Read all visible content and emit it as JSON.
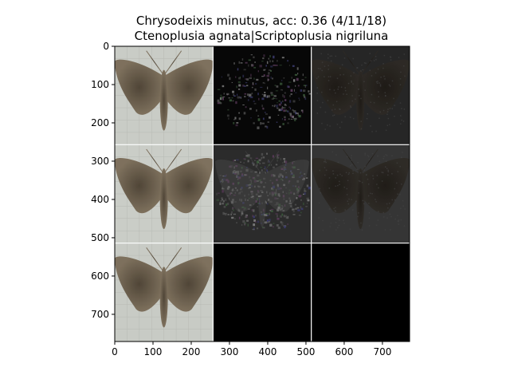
{
  "figure": {
    "title_line1": "Chrysodeixis minutus, acc: 0.36 (4/11/18)",
    "title_line2": "Ctenoplusia agnata|Scriptoplusia nigriluna"
  },
  "axes": {
    "x_range": [
      0,
      771
    ],
    "y_range": [
      0,
      771
    ],
    "x_ticks": [
      0,
      100,
      200,
      300,
      400,
      500,
      600,
      700
    ],
    "y_ticks": [
      0,
      100,
      200,
      300,
      400,
      500,
      600,
      700
    ],
    "y_inverted": true
  },
  "grid": {
    "rows": 3,
    "cols": 3,
    "tile_size": 257,
    "separator_color": "#ffffff",
    "tiles": [
      {
        "row": 0,
        "col": 0,
        "content": "moth-photo",
        "background": "#c9ccc6"
      },
      {
        "row": 0,
        "col": 1,
        "content": "saliency-map",
        "background": "#070707"
      },
      {
        "row": 0,
        "col": 2,
        "content": "saliency-overlay",
        "background": "#262626"
      },
      {
        "row": 1,
        "col": 0,
        "content": "moth-photo",
        "background": "#cacdc7"
      },
      {
        "row": 1,
        "col": 1,
        "content": "saliency-map",
        "background": "#2b2b2b"
      },
      {
        "row": 1,
        "col": 2,
        "content": "saliency-overlay",
        "background": "#353535"
      },
      {
        "row": 2,
        "col": 0,
        "content": "moth-photo",
        "background": "#c8cbc5"
      },
      {
        "row": 2,
        "col": 1,
        "content": "empty",
        "background": "#000000"
      },
      {
        "row": 2,
        "col": 2,
        "content": "empty",
        "background": "#000000"
      }
    ]
  }
}
